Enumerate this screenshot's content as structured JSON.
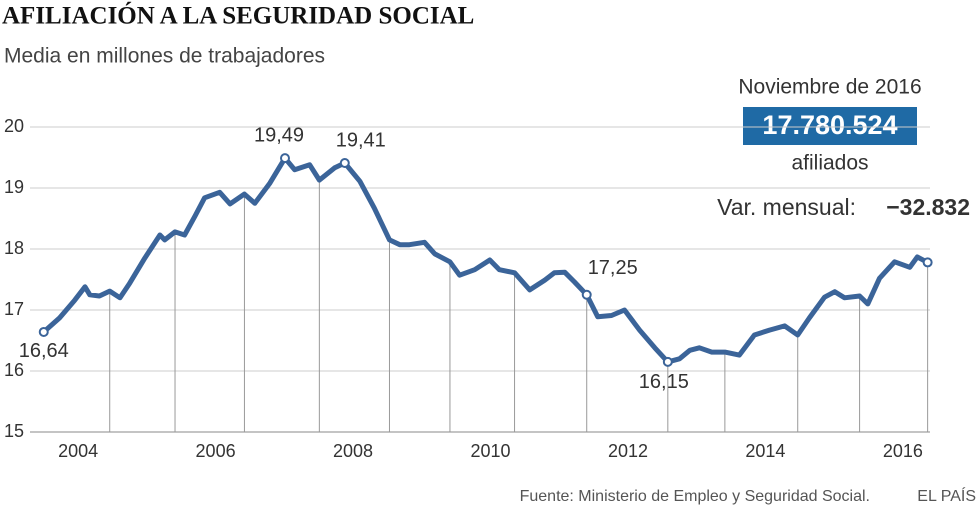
{
  "chart_data": {
    "type": "line",
    "title": "AFILIACIÓN A LA SEGURIDAD SOCIAL",
    "subtitle": "Media en millones de trabajadores",
    "x": [
      2004.0,
      2004.23,
      2004.45,
      2004.6,
      2004.67,
      2004.81,
      2004.96,
      2005.11,
      2005.25,
      2005.47,
      2005.69,
      2005.76,
      2005.91,
      2006.05,
      2006.2,
      2006.34,
      2006.56,
      2006.71,
      2006.92,
      2007.07,
      2007.29,
      2007.51,
      2007.65,
      2007.87,
      2008.01,
      2008.23,
      2008.38,
      2008.6,
      2008.81,
      2009.03,
      2009.18,
      2009.32,
      2009.54,
      2009.69,
      2009.91,
      2010.05,
      2010.27,
      2010.49,
      2010.63,
      2010.85,
      2011.07,
      2011.29,
      2011.43,
      2011.58,
      2011.72,
      2011.9,
      2012.06,
      2012.26,
      2012.45,
      2012.67,
      2012.89,
      2013.08,
      2013.25,
      2013.4,
      2013.54,
      2013.72,
      2013.91,
      2014.12,
      2014.34,
      2014.56,
      2014.78,
      2014.97,
      2015.14,
      2015.36,
      2015.51,
      2015.65,
      2015.87,
      2015.99,
      2016.16,
      2016.38,
      2016.6,
      2016.71,
      2016.86
    ],
    "series": [
      {
        "name": "Afiliados",
        "color": "#3b6499",
        "values": [
          16.64,
          16.87,
          17.16,
          17.38,
          17.25,
          17.23,
          17.31,
          17.2,
          17.44,
          17.85,
          18.23,
          18.15,
          18.28,
          18.23,
          18.54,
          18.84,
          18.93,
          18.74,
          18.9,
          18.75,
          19.08,
          19.49,
          19.3,
          19.38,
          19.13,
          19.33,
          19.41,
          19.11,
          18.67,
          18.15,
          18.07,
          18.07,
          18.11,
          17.92,
          17.79,
          17.57,
          17.66,
          17.82,
          17.66,
          17.61,
          17.33,
          17.49,
          17.61,
          17.62,
          17.46,
          17.25,
          16.89,
          16.91,
          17.0,
          16.67,
          16.38,
          16.15,
          16.2,
          16.34,
          16.38,
          16.31,
          16.31,
          16.26,
          16.59,
          16.67,
          16.74,
          16.59,
          16.87,
          17.21,
          17.3,
          17.2,
          17.23,
          17.1,
          17.52,
          17.79,
          17.7,
          17.87,
          17.78
        ],
        "value_labels": [
          "16,64",
          null,
          null,
          null,
          null,
          null,
          null,
          null,
          null,
          null,
          null,
          null,
          null,
          null,
          null,
          null,
          null,
          null,
          null,
          null,
          null,
          "19,49",
          null,
          null,
          null,
          null,
          "19,41",
          null,
          null,
          null,
          null,
          null,
          null,
          null,
          null,
          null,
          null,
          null,
          null,
          null,
          null,
          null,
          null,
          null,
          null,
          "17,25",
          null,
          null,
          null,
          null,
          null,
          "16,15",
          null,
          null,
          null,
          null,
          null,
          null,
          null,
          null,
          null,
          null,
          null,
          null,
          null,
          null,
          null,
          null,
          null,
          null,
          null,
          null,
          null
        ]
      }
    ],
    "xlim": [
      2003.8,
      2017.2
    ],
    "xticks": [
      {
        "value": 2004.5,
        "label": "2004"
      },
      {
        "value": 2006.5,
        "label": "2006"
      },
      {
        "value": 2008.5,
        "label": "2008"
      },
      {
        "value": 2010.5,
        "label": "2010"
      },
      {
        "value": 2012.5,
        "label": "2012"
      },
      {
        "value": 2014.5,
        "label": "2014"
      },
      {
        "value": 2016.5,
        "label": "2016"
      }
    ],
    "ylim": [
      15,
      20
    ],
    "yticks": [
      15,
      16,
      17,
      18,
      19,
      20
    ],
    "grid": true,
    "latest": {
      "period": "Noviembre de 2016",
      "value": "17.780.524",
      "unit": "afiliados",
      "change_label": "Var. mensual:",
      "change": "−32.832"
    },
    "source": "Fuente: Ministerio de Empleo y Seguridad Social.",
    "publisher": "EL PAÍS"
  }
}
